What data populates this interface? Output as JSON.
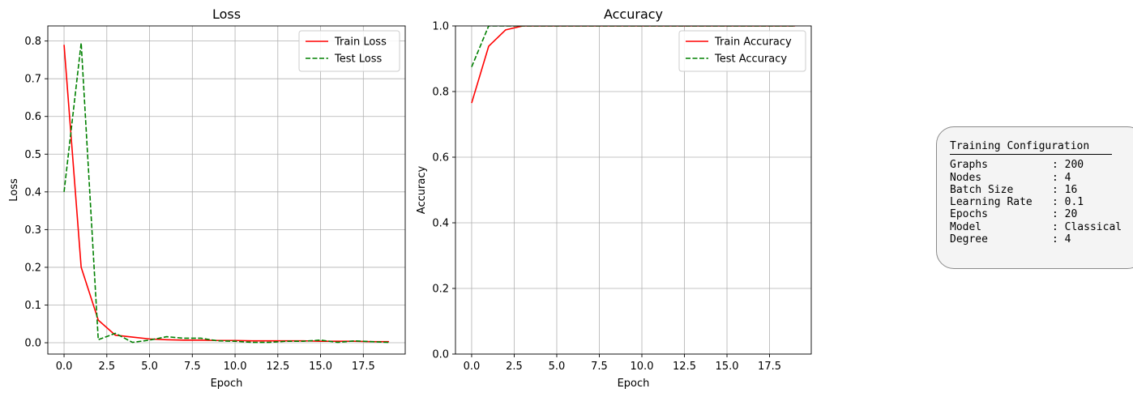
{
  "chart_data": [
    {
      "type": "line",
      "title": "Loss",
      "xlabel": "Epoch",
      "ylabel": "Loss",
      "xlim": [
        -0.95,
        19.95
      ],
      "ylim": [
        -0.03,
        0.84
      ],
      "xticks": [
        0,
        2.5,
        5,
        7.5,
        10,
        12.5,
        15,
        17.5
      ],
      "xtick_labels": [
        "0.0",
        "2.5",
        "5.0",
        "7.5",
        "10.0",
        "12.5",
        "15.0",
        "17.5"
      ],
      "yticks": [
        0,
        0.1,
        0.2,
        0.3,
        0.4,
        0.5,
        0.6,
        0.7,
        0.8
      ],
      "ytick_labels": [
        "0.0",
        "0.1",
        "0.2",
        "0.3",
        "0.4",
        "0.5",
        "0.6",
        "0.7",
        "0.8"
      ],
      "grid": true,
      "legend_position": "top-right",
      "x": [
        0,
        1,
        2,
        3,
        4,
        5,
        6,
        7,
        8,
        9,
        10,
        11,
        12,
        13,
        14,
        15,
        16,
        17,
        18,
        19
      ],
      "series": [
        {
          "name": "Train Loss",
          "color": "#ff0000",
          "style": "solid",
          "values": [
            0.79,
            0.2,
            0.06,
            0.02,
            0.015,
            0.01,
            0.008,
            0.007,
            0.007,
            0.006,
            0.006,
            0.005,
            0.005,
            0.005,
            0.005,
            0.004,
            0.004,
            0.004,
            0.003,
            0.003
          ]
        },
        {
          "name": "Test Loss",
          "color": "#008000",
          "style": "dashed",
          "values": [
            0.4,
            0.795,
            0.008,
            0.025,
            0.001,
            0.007,
            0.016,
            0.012,
            0.012,
            0.005,
            0.004,
            0.001,
            0.001,
            0.004,
            0.004,
            0.007,
            0.001,
            0.005,
            0.003,
            0.001
          ]
        }
      ]
    },
    {
      "type": "line",
      "title": "Accuracy",
      "xlabel": "Epoch",
      "ylabel": "Accuracy",
      "xlim": [
        -0.95,
        19.95
      ],
      "ylim": [
        0,
        1
      ],
      "xticks": [
        0,
        2.5,
        5,
        7.5,
        10,
        12.5,
        15,
        17.5
      ],
      "xtick_labels": [
        "0.0",
        "2.5",
        "5.0",
        "7.5",
        "10.0",
        "12.5",
        "15.0",
        "17.5"
      ],
      "yticks": [
        0,
        0.2,
        0.4,
        0.6,
        0.8,
        1.0
      ],
      "ytick_labels": [
        "0.0",
        "0.2",
        "0.4",
        "0.6",
        "0.8",
        "1.0"
      ],
      "grid": true,
      "legend_position": "top-right",
      "x": [
        0,
        1,
        2,
        3,
        4,
        5,
        6,
        7,
        8,
        9,
        10,
        11,
        12,
        13,
        14,
        15,
        16,
        17,
        18,
        19
      ],
      "series": [
        {
          "name": "Train Accuracy",
          "color": "#ff0000",
          "style": "solid",
          "values": [
            0.765,
            0.938,
            0.988,
            1.0,
            1.0,
            1.0,
            1.0,
            1.0,
            1.0,
            1.0,
            1.0,
            1.0,
            1.0,
            1.0,
            1.0,
            1.0,
            1.0,
            1.0,
            1.0,
            1.0
          ]
        },
        {
          "name": "Test Accuracy",
          "color": "#008000",
          "style": "dashed",
          "values": [
            0.875,
            1.0,
            1.0,
            1.0,
            1.0,
            1.0,
            1.0,
            1.0,
            1.0,
            1.0,
            1.0,
            1.0,
            1.0,
            1.0,
            1.0,
            1.0,
            1.0,
            1.0,
            1.0,
            1.0
          ]
        }
      ]
    }
  ],
  "config": {
    "title": "Training Configuration",
    "rows": [
      {
        "key": "Graphs",
        "value": ": 200"
      },
      {
        "key": "Nodes",
        "value": ": 4"
      },
      {
        "key": "Batch Size",
        "value": ": 16"
      },
      {
        "key": "Learning Rate",
        "value": ": 0.1"
      },
      {
        "key": "Epochs",
        "value": ": 20"
      },
      {
        "key": "Model",
        "value": ": Classical"
      },
      {
        "key": "Degree",
        "value": ": 4"
      }
    ]
  }
}
